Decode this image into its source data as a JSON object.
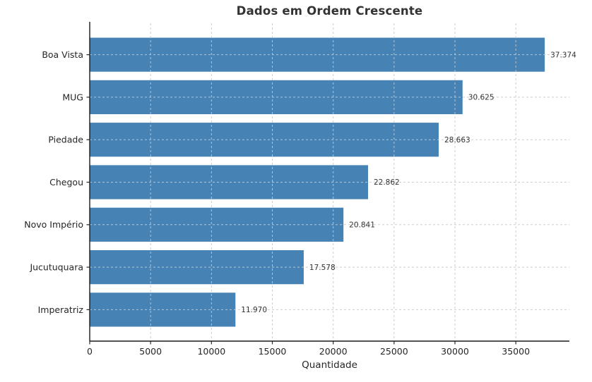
{
  "title": "Dados em Ordem Crescente",
  "xlabel": "Quantidade",
  "chart_data": {
    "type": "bar",
    "orientation": "horizontal",
    "title": "Dados em Ordem Crescente",
    "xlabel": "Quantidade",
    "ylabel": "",
    "categories": [
      "Boa Vista",
      "MUG",
      "Piedade",
      "Chegou",
      "Novo Império",
      "Jucutuquara",
      "Imperatriz"
    ],
    "values": [
      37374,
      30625,
      28663,
      22862,
      20841,
      17578,
      11970
    ],
    "value_labels": [
      "37.374",
      "30.625",
      "28.663",
      "22.862",
      "20.841",
      "17.578",
      "11.970"
    ],
    "x_ticks": [
      0,
      5000,
      10000,
      15000,
      20000,
      25000,
      30000,
      35000
    ],
    "x_tick_labels": [
      "0",
      "5000",
      "10000",
      "15000",
      "20000",
      "25000",
      "30000",
      "35000"
    ],
    "xlim": [
      0,
      39400
    ],
    "grid": "both-dashed",
    "legend": "none",
    "bar_color": "#4682b4",
    "grid_color": "#c9c9c9",
    "spine_color": "#1a1a1a",
    "tick_color": "#262626",
    "text_color": "#262626",
    "label_color": "#333333"
  }
}
